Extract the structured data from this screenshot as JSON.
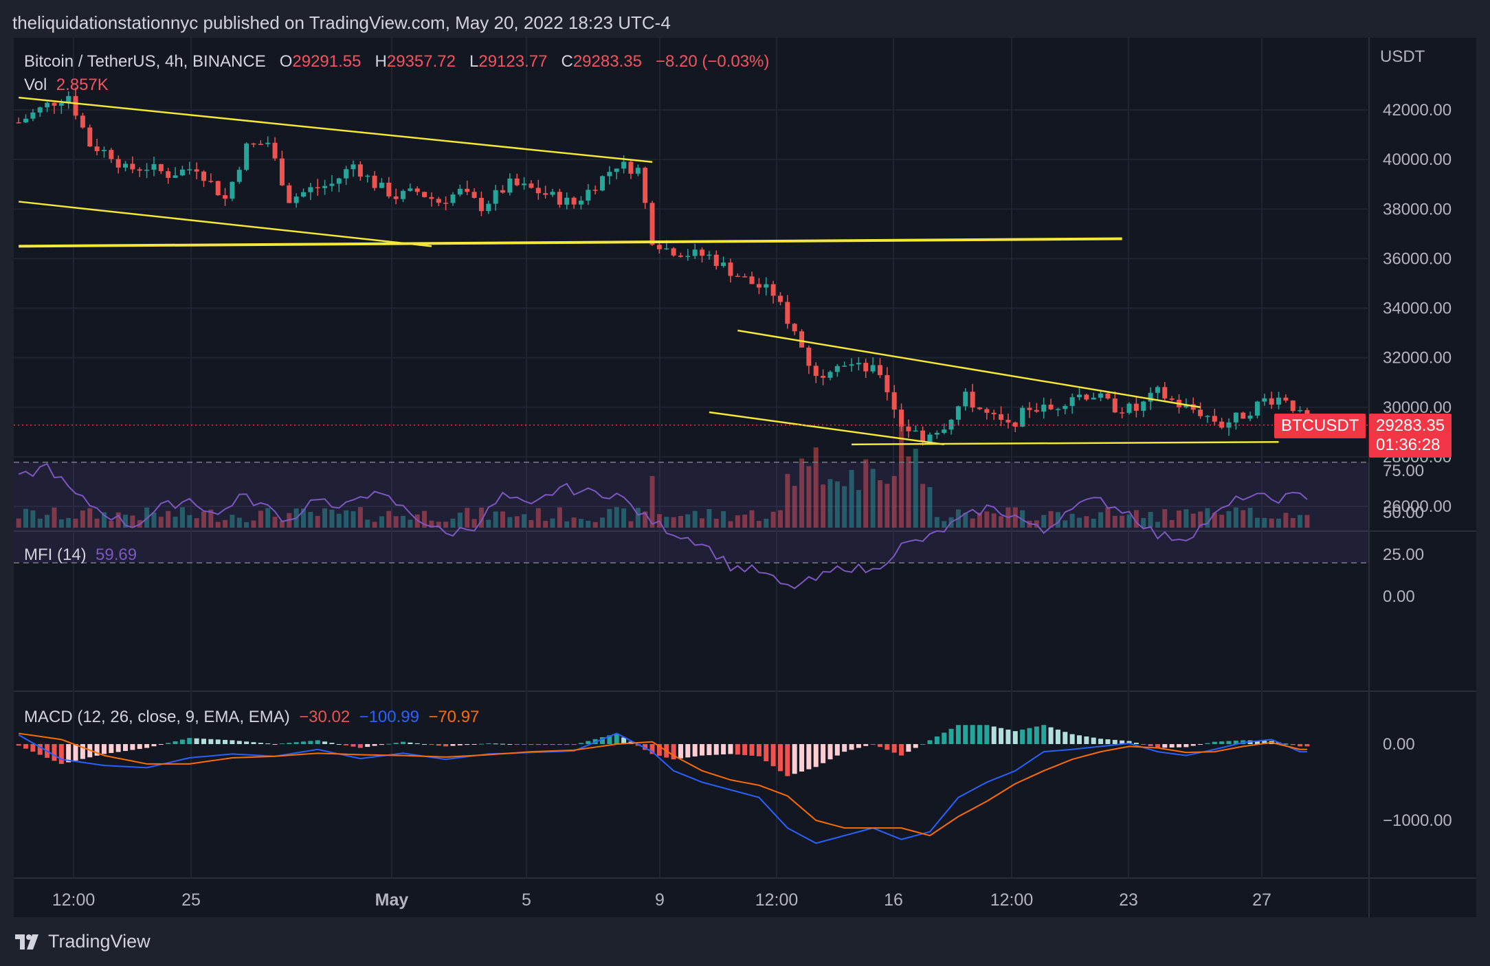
{
  "header": {
    "published_line": "theliquidationstationnyc published on TradingView.com, May 20, 2022 18:23 UTC-4"
  },
  "legend": {
    "symbol": "Bitcoin / TetherUS, 4h, BINANCE",
    "open_label": "O",
    "open": "29291.55",
    "high_label": "H",
    "high": "29357.72",
    "low_label": "L",
    "low": "29123.77",
    "close_label": "C",
    "close": "29283.35",
    "change": "−8.20 (−0.03%)",
    "vol_label": "Vol",
    "vol": "2.857K"
  },
  "mfi_legend": {
    "label": "MFI (14)",
    "value": "59.69"
  },
  "macd_legend": {
    "label": "MACD (12, 26, close, 9, EMA, EMA)",
    "hist": "−30.02",
    "macd": "−100.99",
    "signal": "−70.97"
  },
  "price_axis": {
    "currency": "USDT",
    "ticks": [
      "42000.00",
      "40000.00",
      "38000.00",
      "36000.00",
      "34000.00",
      "32000.00",
      "30000.00",
      "28000.00",
      "26000.00"
    ]
  },
  "mfi_axis": {
    "ticks": [
      "75.00",
      "50.00",
      "25.00",
      "0.00"
    ]
  },
  "macd_axis": {
    "ticks": [
      "0.00",
      "−1000.00"
    ]
  },
  "time_axis": {
    "ticks": [
      "12:00",
      "25",
      "May",
      "5",
      "9",
      "12:00",
      "16",
      "12:00",
      "23",
      "27"
    ]
  },
  "last_price": {
    "symbol_tag": "BTCUSDT",
    "price": "29283.35",
    "countdown": "01:36:28"
  },
  "footer": {
    "brand": "TradingView"
  },
  "colors": {
    "up": "#26a69a",
    "down": "#ef5350",
    "trendline": "#f5e83c",
    "mfi": "#7e57c2",
    "macd": "#2962ff",
    "signal": "#ff6d00"
  },
  "chart_data": {
    "type": "candlestick",
    "symbol": "BTCUSDT",
    "interval": "4h",
    "ylim": [
      25500,
      43500
    ],
    "close_path": [
      [
        0,
        41500
      ],
      [
        4,
        42200
      ],
      [
        7,
        42600
      ],
      [
        10,
        40600
      ],
      [
        13,
        40200
      ],
      [
        15,
        39600
      ],
      [
        18,
        39700
      ],
      [
        21,
        39400
      ],
      [
        25,
        39700
      ],
      [
        29,
        38400
      ],
      [
        32,
        40500
      ],
      [
        35,
        40700
      ],
      [
        38,
        38400
      ],
      [
        41,
        38800
      ],
      [
        44,
        39000
      ],
      [
        47,
        39800
      ],
      [
        50,
        39000
      ],
      [
        53,
        38500
      ],
      [
        56,
        38700
      ],
      [
        59,
        38300
      ],
      [
        62,
        38700
      ],
      [
        65,
        38100
      ],
      [
        69,
        39000
      ],
      [
        72,
        38800
      ],
      [
        75,
        38500
      ],
      [
        78,
        38200
      ],
      [
        81,
        39000
      ],
      [
        84,
        39800
      ],
      [
        87,
        39600
      ],
      [
        89,
        36800
      ],
      [
        91,
        36400
      ],
      [
        94,
        36200
      ],
      [
        97,
        36100
      ],
      [
        100,
        35500
      ],
      [
        103,
        35000
      ],
      [
        106,
        34600
      ],
      [
        109,
        33000
      ],
      [
        112,
        31200
      ],
      [
        115,
        31900
      ],
      [
        118,
        31600
      ],
      [
        121,
        31400
      ],
      [
        124,
        29300
      ],
      [
        127,
        28800
      ],
      [
        130,
        29300
      ],
      [
        133,
        30400
      ],
      [
        136,
        29700
      ],
      [
        139,
        29200
      ],
      [
        142,
        30000
      ],
      [
        145,
        29900
      ],
      [
        148,
        30500
      ],
      [
        151,
        30500
      ],
      [
        154,
        30000
      ],
      [
        157,
        29900
      ],
      [
        160,
        30600
      ],
      [
        163,
        30100
      ],
      [
        166,
        29800
      ],
      [
        169,
        29300
      ],
      [
        172,
        29700
      ],
      [
        175,
        30300
      ],
      [
        178,
        30400
      ],
      [
        181,
        29280
      ]
    ],
    "volume_spikes": "large volume on May 9–12 selloff",
    "mfi": {
      "period": 14,
      "last": 59.69,
      "bands": [
        20,
        80
      ],
      "values": [
        [
          0,
          70
        ],
        [
          4,
          78
        ],
        [
          8,
          60
        ],
        [
          12,
          50
        ],
        [
          16,
          42
        ],
        [
          20,
          53
        ],
        [
          24,
          58
        ],
        [
          28,
          48
        ],
        [
          31,
          60
        ],
        [
          34,
          55
        ],
        [
          38,
          45
        ],
        [
          42,
          60
        ],
        [
          45,
          50
        ],
        [
          48,
          62
        ],
        [
          52,
          58
        ],
        [
          56,
          47
        ],
        [
          60,
          37
        ],
        [
          64,
          42
        ],
        [
          68,
          60
        ],
        [
          72,
          53
        ],
        [
          76,
          65
        ],
        [
          80,
          62
        ],
        [
          84,
          61
        ],
        [
          88,
          47
        ],
        [
          92,
          38
        ],
        [
          96,
          32
        ],
        [
          100,
          18
        ],
        [
          104,
          15
        ],
        [
          108,
          5
        ],
        [
          112,
          10
        ],
        [
          116,
          18
        ],
        [
          120,
          15
        ],
        [
          124,
          30
        ],
        [
          128,
          35
        ],
        [
          132,
          45
        ],
        [
          136,
          53
        ],
        [
          140,
          48
        ],
        [
          144,
          38
        ],
        [
          148,
          55
        ],
        [
          152,
          57
        ],
        [
          156,
          50
        ],
        [
          160,
          36
        ],
        [
          164,
          35
        ],
        [
          168,
          48
        ],
        [
          172,
          60
        ],
        [
          176,
          58
        ],
        [
          180,
          60
        ]
      ]
    },
    "macd": {
      "fast": 12,
      "slow": 26,
      "signal": 9,
      "last_macd": -100.99,
      "last_signal": -70.97,
      "last_hist": -30.02,
      "macd_values": [
        [
          0,
          120
        ],
        [
          6,
          -200
        ],
        [
          12,
          -280
        ],
        [
          18,
          -310
        ],
        [
          24,
          -180
        ],
        [
          30,
          -130
        ],
        [
          36,
          -160
        ],
        [
          42,
          -70
        ],
        [
          48,
          -190
        ],
        [
          54,
          -120
        ],
        [
          60,
          -200
        ],
        [
          66,
          -130
        ],
        [
          72,
          -110
        ],
        [
          78,
          -90
        ],
        [
          84,
          140
        ],
        [
          89,
          -100
        ],
        [
          92,
          -350
        ],
        [
          96,
          -500
        ],
        [
          100,
          -600
        ],
        [
          104,
          -700
        ],
        [
          108,
          -1100
        ],
        [
          112,
          -1300
        ],
        [
          116,
          -1200
        ],
        [
          120,
          -1100
        ],
        [
          124,
          -1250
        ],
        [
          128,
          -1150
        ],
        [
          132,
          -700
        ],
        [
          136,
          -500
        ],
        [
          140,
          -350
        ],
        [
          144,
          -100
        ],
        [
          148,
          -70
        ],
        [
          152,
          -30
        ],
        [
          156,
          10
        ],
        [
          160,
          -100
        ],
        [
          164,
          -150
        ],
        [
          168,
          -70
        ],
        [
          172,
          20
        ],
        [
          176,
          60
        ],
        [
          180,
          -100
        ]
      ],
      "signal_values": [
        [
          0,
          140
        ],
        [
          6,
          60
        ],
        [
          12,
          -150
        ],
        [
          18,
          -260
        ],
        [
          24,
          -260
        ],
        [
          30,
          -180
        ],
        [
          36,
          -160
        ],
        [
          42,
          -120
        ],
        [
          48,
          -140
        ],
        [
          54,
          -150
        ],
        [
          60,
          -170
        ],
        [
          66,
          -140
        ],
        [
          72,
          -100
        ],
        [
          78,
          -80
        ],
        [
          84,
          0
        ],
        [
          89,
          30
        ],
        [
          92,
          -150
        ],
        [
          96,
          -350
        ],
        [
          100,
          -470
        ],
        [
          104,
          -540
        ],
        [
          108,
          -680
        ],
        [
          112,
          -1000
        ],
        [
          116,
          -1100
        ],
        [
          120,
          -1100
        ],
        [
          124,
          -1100
        ],
        [
          128,
          -1200
        ],
        [
          132,
          -950
        ],
        [
          136,
          -750
        ],
        [
          140,
          -520
        ],
        [
          144,
          -350
        ],
        [
          148,
          -200
        ],
        [
          152,
          -100
        ],
        [
          156,
          -30
        ],
        [
          160,
          -50
        ],
        [
          164,
          -110
        ],
        [
          168,
          -100
        ],
        [
          172,
          -30
        ],
        [
          176,
          20
        ],
        [
          180,
          -70
        ]
      ]
    },
    "trendlines": [
      {
        "name": "upper-channel-1",
        "from": [
          0,
          42500
        ],
        "to": [
          89,
          39900
        ]
      },
      {
        "name": "lower-channel-1",
        "from": [
          0,
          38300
        ],
        "to": [
          58,
          36500
        ]
      },
      {
        "name": "horizontal-support",
        "from": [
          0,
          36500
        ],
        "to": [
          155,
          36800
        ]
      },
      {
        "name": "upper-wedge",
        "from": [
          101,
          33100
        ],
        "to": [
          166,
          30000
        ]
      },
      {
        "name": "lower-wedge",
        "from": [
          97,
          29800
        ],
        "to": [
          130,
          28500
        ]
      },
      {
        "name": "wedge-base",
        "from": [
          117,
          28500
        ],
        "to": [
          177,
          28600
        ]
      }
    ]
  }
}
